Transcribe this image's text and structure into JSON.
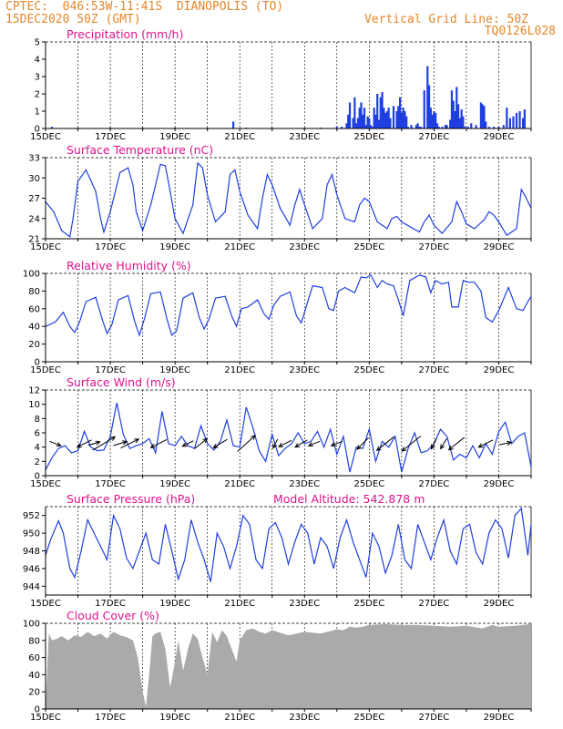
{
  "header": {
    "line1_left": "CPTEC:  046:53W-11:41S  DIANOPOLIS (TO)",
    "line2_left": "15DEC2020 50Z (GMT)",
    "line1_right": "Vertical Grid Line: 50Z",
    "line2_right": "TQ0126L028"
  },
  "colors": {
    "header": "#e8862a",
    "title": "#e0138c",
    "series": "#1f3fe0",
    "cloud": "#aaaaaa",
    "axis": "#000000",
    "arrow": "#000000"
  },
  "chart_data": [
    {
      "type": "bar",
      "title": "Precipitation (mm/h)",
      "ylim": [
        0,
        5
      ],
      "yticks": [
        0,
        1,
        2,
        3,
        4,
        5
      ],
      "xlim": [
        0,
        15
      ],
      "xticks": [
        0,
        2,
        4,
        6,
        8,
        10,
        12,
        14
      ],
      "xtick_labels": [
        "15DEC",
        "17DEC",
        "19DEC",
        "21DEC",
        "23DEC",
        "25DEC",
        "27DEC",
        "29DEC"
      ],
      "x": [
        0.2,
        1.0,
        2.0,
        3.0,
        4.0,
        5.0,
        5.8,
        6.2,
        7.0,
        8.0,
        8.5,
        9.0,
        9.15,
        9.3,
        9.35,
        9.4,
        9.5,
        9.55,
        9.6,
        9.65,
        9.7,
        9.75,
        9.8,
        9.85,
        9.9,
        9.95,
        10.0,
        10.05,
        10.1,
        10.15,
        10.2,
        10.25,
        10.3,
        10.35,
        10.4,
        10.45,
        10.5,
        10.55,
        10.6,
        10.65,
        10.75,
        10.85,
        10.9,
        10.95,
        11.0,
        11.05,
        11.1,
        11.15,
        11.2,
        11.3,
        11.45,
        11.5,
        11.55,
        11.6,
        11.7,
        11.8,
        11.85,
        11.9,
        11.95,
        12.0,
        12.05,
        12.1,
        12.15,
        12.25,
        12.35,
        12.4,
        12.5,
        12.55,
        12.6,
        12.65,
        12.7,
        12.75,
        12.8,
        12.85,
        12.9,
        12.95,
        13.05,
        13.15,
        13.3,
        13.45,
        13.5,
        13.55,
        13.6,
        13.7,
        13.85,
        14.0,
        14.15,
        14.25,
        14.35,
        14.45,
        14.55,
        14.65,
        14.75,
        14.8
      ],
      "values": [
        0.1,
        0.05,
        0.05,
        0.05,
        0.05,
        0.05,
        0.4,
        0.05,
        0.05,
        0.05,
        0.05,
        0.1,
        0.1,
        0.3,
        0.8,
        1.5,
        0.6,
        1.8,
        0.3,
        0.6,
        1.2,
        1.5,
        0.8,
        1.2,
        0.2,
        0.7,
        0.6,
        0.2,
        0.1,
        1.2,
        0.8,
        2.0,
        0.5,
        1.8,
        2.1,
        1.2,
        0.9,
        1.0,
        1.2,
        0.6,
        1.3,
        1.0,
        1.3,
        1.8,
        0.9,
        1.2,
        1.0,
        0.7,
        0.1,
        0.2,
        0.2,
        0.3,
        0.1,
        0.1,
        2.2,
        3.6,
        2.5,
        1.2,
        0.8,
        1.0,
        0.9,
        0.3,
        0.1,
        0.1,
        0.2,
        0.2,
        0.5,
        2.2,
        1.6,
        1.0,
        2.4,
        1.4,
        0.6,
        1.1,
        0.7,
        0.1,
        0.1,
        0.3,
        0.2,
        1.5,
        1.4,
        1.3,
        0.4,
        0.1,
        0.1,
        0.1,
        0.2,
        1.2,
        0.6,
        0.7,
        0.9,
        1.0,
        0.6,
        1.1
      ]
    },
    {
      "type": "line",
      "title": "Surface Temperature (nC)",
      "ylim": [
        21,
        33
      ],
      "yticks": [
        21,
        24,
        27,
        30,
        33
      ],
      "xlim": [
        0,
        15
      ],
      "xticks": [
        0,
        2,
        4,
        6,
        8,
        10,
        12,
        14
      ],
      "xtick_labels": [
        "15DEC",
        "17DEC",
        "19DEC",
        "21DEC",
        "23DEC",
        "25DEC",
        "27DEC",
        "29DEC"
      ],
      "x": [
        0,
        0.25,
        0.5,
        0.75,
        0.85,
        1.0,
        1.25,
        1.55,
        1.7,
        1.8,
        2.0,
        2.3,
        2.55,
        2.7,
        2.8,
        3.0,
        3.25,
        3.55,
        3.7,
        3.85,
        4.0,
        4.25,
        4.55,
        4.7,
        4.85,
        5.0,
        5.25,
        5.55,
        5.7,
        5.85,
        6.0,
        6.25,
        6.55,
        6.7,
        6.85,
        7.0,
        7.25,
        7.55,
        7.7,
        7.85,
        8.0,
        8.25,
        8.55,
        8.7,
        8.85,
        9.0,
        9.25,
        9.55,
        9.7,
        9.85,
        10.0,
        10.25,
        10.55,
        10.7,
        10.85,
        11.0,
        11.25,
        11.55,
        11.7,
        11.85,
        12.0,
        12.25,
        12.55,
        12.7,
        12.85,
        13.0,
        13.25,
        13.55,
        13.7,
        13.85,
        14.0,
        14.25,
        14.55,
        14.7,
        14.85,
        15.0
      ],
      "values": [
        26.5,
        25,
        22.2,
        21.3,
        24,
        29.5,
        31.2,
        28,
        24,
        22,
        25,
        30.8,
        31.5,
        29,
        25,
        22.2,
        26,
        32,
        31.8,
        28,
        24,
        21.8,
        26,
        32.2,
        31.5,
        27.5,
        23.5,
        25,
        30.5,
        31.2,
        28,
        24.5,
        22.5,
        27,
        30.5,
        29,
        25.5,
        23,
        26,
        28.3,
        26,
        22.5,
        24,
        29,
        30.5,
        27.5,
        24,
        23.5,
        26,
        27,
        26.5,
        23.5,
        22.5,
        24,
        24.3,
        23.5,
        22.8,
        22,
        23.5,
        24.5,
        23,
        21.8,
        23.5,
        26.5,
        25,
        23.2,
        22.5,
        23.8,
        25,
        24.5,
        23.5,
        21.5,
        22.5,
        28.3,
        27,
        25.5
      ]
    },
    {
      "type": "line",
      "title": "Relative Humidity (%)",
      "ylim": [
        0,
        100
      ],
      "yticks": [
        0,
        20,
        40,
        60,
        80,
        100
      ],
      "xlim": [
        0,
        15
      ],
      "xticks": [
        0,
        2,
        4,
        6,
        8,
        10,
        12,
        14
      ],
      "xtick_labels": [
        "15DEC",
        "17DEC",
        "19DEC",
        "21DEC",
        "23DEC",
        "25DEC",
        "27DEC",
        "29DEC"
      ],
      "x": [
        0,
        0.3,
        0.55,
        0.75,
        0.9,
        1.05,
        1.25,
        1.55,
        1.75,
        1.9,
        2.05,
        2.25,
        2.55,
        2.75,
        2.9,
        3.05,
        3.25,
        3.55,
        3.75,
        3.9,
        4.05,
        4.25,
        4.55,
        4.75,
        4.9,
        5.05,
        5.25,
        5.55,
        5.75,
        5.9,
        6.05,
        6.25,
        6.55,
        6.75,
        6.9,
        7.05,
        7.25,
        7.55,
        7.75,
        7.9,
        8.05,
        8.25,
        8.55,
        8.75,
        8.9,
        9.05,
        9.25,
        9.55,
        9.75,
        9.9,
        10.05,
        10.25,
        10.4,
        10.55,
        10.75,
        10.9,
        11.05,
        11.25,
        11.55,
        11.75,
        11.9,
        12.05,
        12.25,
        12.45,
        12.55,
        12.75,
        12.9,
        13.05,
        13.25,
        13.45,
        13.6,
        13.8,
        14.0,
        14.3,
        14.55,
        14.75,
        14.9,
        15.0
      ],
      "values": [
        40,
        45,
        56,
        40,
        33,
        45,
        68,
        73,
        48,
        32,
        42,
        70,
        75,
        46,
        30,
        48,
        77,
        79,
        48,
        30,
        35,
        72,
        78,
        50,
        37,
        48,
        72,
        74,
        52,
        40,
        60,
        62,
        70,
        54,
        48,
        64,
        74,
        79,
        52,
        44,
        62,
        86,
        84,
        60,
        58,
        80,
        84,
        78,
        96,
        95,
        98,
        84,
        92,
        88,
        86,
        70,
        52,
        92,
        98,
        96,
        78,
        92,
        88,
        90,
        62,
        62,
        92,
        90,
        90,
        80,
        50,
        45,
        58,
        84,
        60,
        58,
        68,
        74
      ]
    },
    {
      "type": "line",
      "title": "Surface Wind (m/s)",
      "ylim": [
        0,
        12
      ],
      "yticks": [
        0,
        2,
        4,
        6,
        8,
        10,
        12
      ],
      "xlim": [
        0,
        15
      ],
      "xticks": [
        0,
        2,
        4,
        6,
        8,
        10,
        12,
        14
      ],
      "xtick_labels": [
        "15DEC",
        "17DEC",
        "19DEC",
        "21DEC",
        "23DEC",
        "25DEC",
        "27DEC",
        "29DEC"
      ],
      "x": [
        0,
        0.2,
        0.4,
        0.6,
        0.8,
        1.0,
        1.2,
        1.4,
        1.6,
        1.8,
        2.0,
        2.2,
        2.4,
        2.6,
        2.8,
        3.0,
        3.2,
        3.4,
        3.6,
        3.8,
        4.0,
        4.2,
        4.4,
        4.6,
        4.8,
        5.0,
        5.2,
        5.4,
        5.6,
        5.8,
        6.0,
        6.2,
        6.4,
        6.6,
        6.8,
        7.0,
        7.2,
        7.4,
        7.6,
        7.8,
        8.0,
        8.2,
        8.4,
        8.6,
        8.8,
        9.0,
        9.2,
        9.4,
        9.6,
        9.8,
        10.0,
        10.2,
        10.4,
        10.6,
        10.8,
        11.0,
        11.2,
        11.4,
        11.6,
        11.8,
        12.0,
        12.2,
        12.4,
        12.6,
        12.8,
        13.0,
        13.2,
        13.4,
        13.6,
        13.8,
        14.0,
        14.2,
        14.4,
        14.6,
        14.8,
        15.0
      ],
      "values": [
        0.8,
        2.5,
        3.8,
        4.2,
        3.2,
        3.5,
        6.2,
        4.0,
        3.5,
        3.6,
        5.5,
        10.2,
        5.8,
        3.8,
        4.2,
        4.5,
        5.2,
        3.2,
        9.0,
        4.5,
        4.2,
        5.5,
        4.2,
        3.8,
        7.0,
        4.5,
        3.6,
        4.8,
        7.8,
        4.2,
        4.0,
        9.6,
        6.8,
        3.5,
        2.0,
        5.8,
        2.8,
        3.8,
        4.5,
        6.0,
        4.5,
        4.8,
        6.2,
        4.0,
        6.5,
        3.0,
        5.5,
        0.5,
        4.0,
        3.8,
        6.5,
        2.0,
        4.8,
        4.0,
        5.5,
        0.5,
        3.8,
        6.0,
        3.2,
        3.5,
        4.5,
        6.5,
        5.5,
        2.2,
        3.0,
        2.5,
        4.2,
        2.5,
        4.5,
        3.0,
        6.2,
        7.5,
        4.5,
        5.5,
        6.0,
        1.2
      ],
      "arrows": [
        {
          "x": 0.3,
          "u": 1,
          "v": -0.4,
          "len": 0.6
        },
        {
          "x": 1.2,
          "u": -1,
          "v": -0.5,
          "len": 0.8
        },
        {
          "x": 1.5,
          "u": 1,
          "v": 0.3,
          "len": 0.6
        },
        {
          "x": 1.8,
          "u": 1,
          "v": 0.6,
          "len": 1.3
        },
        {
          "x": 2.3,
          "u": 1,
          "v": 0.3,
          "len": 0.7
        },
        {
          "x": 2.6,
          "u": 1,
          "v": 0.5,
          "len": 1.0
        },
        {
          "x": 3.5,
          "u": -1,
          "v": -0.5,
          "len": 0.9
        },
        {
          "x": 4.4,
          "u": -1,
          "v": -0.5,
          "len": 0.6
        },
        {
          "x": 4.8,
          "u": 1,
          "v": 0.8,
          "len": 0.8
        },
        {
          "x": 5.4,
          "u": -1,
          "v": -0.6,
          "len": 0.8
        },
        {
          "x": 6.2,
          "u": 1,
          "v": 0.9,
          "len": 1.2
        },
        {
          "x": 7.1,
          "u": -0.5,
          "v": -1,
          "len": 0.5
        },
        {
          "x": 7.4,
          "u": -1,
          "v": -0.5,
          "len": 0.7
        },
        {
          "x": 7.9,
          "u": -1,
          "v": -0.6,
          "len": 0.7
        },
        {
          "x": 8.3,
          "u": -1,
          "v": -0.4,
          "len": 0.6
        },
        {
          "x": 9.0,
          "u": -1,
          "v": -0.4,
          "len": 0.6
        },
        {
          "x": 9.8,
          "u": -1,
          "v": -1,
          "len": 0.8
        },
        {
          "x": 10.5,
          "u": -1,
          "v": -0.8,
          "len": 1.1
        },
        {
          "x": 11.3,
          "u": -1,
          "v": -0.8,
          "len": 1.2
        },
        {
          "x": 12.0,
          "u": -0.5,
          "v": -1,
          "len": 0.6
        },
        {
          "x": 12.3,
          "u": -0.6,
          "v": -1,
          "len": 0.6
        },
        {
          "x": 12.7,
          "u": -1,
          "v": -0.8,
          "len": 1.0
        },
        {
          "x": 13.6,
          "u": -1,
          "v": -0.5,
          "len": 0.8
        },
        {
          "x": 14.2,
          "u": 1,
          "v": 0.2,
          "len": 0.6
        }
      ]
    },
    {
      "type": "line",
      "title": "Surface Pressure (hPa)",
      "annotation": "Model Altitude: 542.878  m",
      "ylim": [
        943,
        953
      ],
      "yticks": [
        944,
        946,
        948,
        950,
        952
      ],
      "xlim": [
        0,
        15
      ],
      "xticks": [
        0,
        2,
        4,
        6,
        8,
        10,
        12,
        14
      ],
      "xtick_labels": [
        "15DEC",
        "17DEC",
        "19DEC",
        "21DEC",
        "23DEC",
        "25DEC",
        "27DEC",
        "29DEC"
      ],
      "x": [
        0,
        0.15,
        0.4,
        0.55,
        0.75,
        0.9,
        1.1,
        1.3,
        1.5,
        1.7,
        1.9,
        2.1,
        2.3,
        2.5,
        2.7,
        2.9,
        3.1,
        3.3,
        3.5,
        3.7,
        3.9,
        4.1,
        4.3,
        4.5,
        4.7,
        4.9,
        5.1,
        5.3,
        5.5,
        5.7,
        5.9,
        6.1,
        6.3,
        6.5,
        6.7,
        6.9,
        7.1,
        7.3,
        7.5,
        7.7,
        7.9,
        8.1,
        8.3,
        8.5,
        8.7,
        8.9,
        9.1,
        9.3,
        9.5,
        9.7,
        9.9,
        10.1,
        10.3,
        10.5,
        10.7,
        10.9,
        11.1,
        11.3,
        11.5,
        11.7,
        11.9,
        12.1,
        12.3,
        12.5,
        12.7,
        12.9,
        13.1,
        13.3,
        13.5,
        13.7,
        13.9,
        14.1,
        14.3,
        14.5,
        14.7,
        14.9,
        15.0
      ],
      "values": [
        947.5,
        949.2,
        951.4,
        950,
        946,
        945,
        948,
        951.5,
        950,
        948.5,
        947,
        952,
        950.5,
        947.2,
        946,
        948,
        950,
        947,
        946.5,
        951,
        948,
        944.8,
        947,
        951.5,
        949,
        947,
        944.5,
        950,
        948.5,
        946,
        948.5,
        952,
        951,
        947,
        946,
        950.5,
        951.2,
        949.5,
        946.5,
        949,
        951,
        950,
        946.5,
        949.5,
        948.5,
        946,
        949.5,
        951.5,
        949,
        947,
        945,
        950,
        948.5,
        945.5,
        947.5,
        951,
        947,
        946,
        951,
        949,
        947,
        949.5,
        951.5,
        948,
        946.5,
        950.5,
        951,
        947.8,
        946.5,
        950,
        951.5,
        950.5,
        947.2,
        952,
        952.8,
        947.5,
        951
      ]
    },
    {
      "type": "area",
      "title": "Cloud Cover (%)",
      "ylim": [
        0,
        100
      ],
      "yticks": [
        0,
        20,
        40,
        60,
        80,
        100
      ],
      "xlim": [
        0,
        15
      ],
      "xticks": [
        0,
        2,
        4,
        6,
        8,
        10,
        12,
        14
      ],
      "xtick_labels": [
        "15DEC",
        "17DEC",
        "19DEC",
        "21DEC",
        "23DEC",
        "25DEC",
        "27DEC",
        "29DEC"
      ],
      "x": [
        0,
        0.1,
        0.2,
        0.35,
        0.5,
        0.7,
        0.9,
        1.1,
        1.3,
        1.5,
        1.7,
        1.9,
        2.1,
        2.3,
        2.5,
        2.7,
        2.85,
        3.0,
        3.1,
        3.2,
        3.3,
        3.4,
        3.55,
        3.7,
        3.85,
        4.0,
        4.1,
        4.25,
        4.4,
        4.55,
        4.7,
        4.85,
        5.0,
        5.15,
        5.3,
        5.45,
        5.6,
        5.75,
        5.9,
        6.0,
        6.2,
        6.4,
        6.6,
        6.8,
        7.0,
        7.5,
        8.0,
        8.5,
        9.0,
        9.2,
        9.4,
        9.6,
        9.8,
        10.0,
        10.5,
        11.0,
        11.5,
        12.0,
        12.5,
        13.0,
        13.5,
        13.8,
        14.0,
        14.5,
        15.0
      ],
      "values": [
        2,
        88,
        80,
        82,
        85,
        80,
        86,
        84,
        90,
        85,
        88,
        82,
        90,
        86,
        84,
        80,
        60,
        20,
        3,
        40,
        85,
        88,
        90,
        70,
        25,
        55,
        80,
        45,
        70,
        88,
        82,
        60,
        40,
        90,
        78,
        92,
        85,
        70,
        55,
        80,
        92,
        94,
        90,
        88,
        92,
        86,
        90,
        88,
        93,
        92,
        96,
        95,
        96,
        98,
        99,
        98,
        98,
        97,
        96,
        97,
        94,
        98,
        96,
        97,
        99
      ]
    }
  ]
}
